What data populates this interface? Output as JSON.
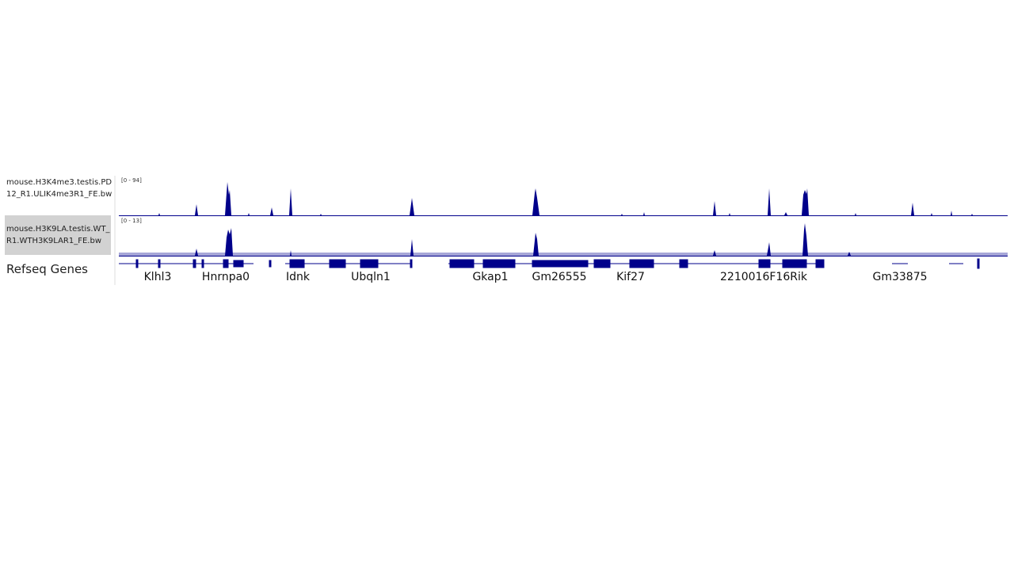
{
  "tracks": [
    {
      "name": "mouse.H3K4me3.testis.PD12_R1.ULIK4me3R1_FE.bw",
      "range": "[0 - 94]"
    },
    {
      "name": "mouse.H3K9LA.testis.WT_R1.WTH3K9LAR1_FE.bw",
      "range": "[0 - 13]"
    }
  ],
  "refseq": {
    "name": "Refseq Genes",
    "genes": [
      "Klhl3",
      "Hnrnpa0",
      "Idnk",
      "Ubqln1",
      "Gkap1",
      "Gm26555",
      "Kif27",
      "2210016F16Rik",
      "Gm33875"
    ]
  }
}
